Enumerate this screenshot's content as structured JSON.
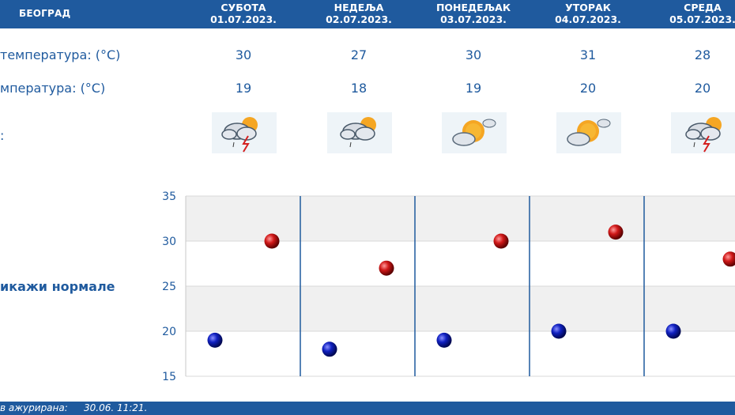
{
  "header": {
    "city": "БЕОГРАД",
    "days": [
      {
        "name": "СУБОТА",
        "date": "01.07.2023."
      },
      {
        "name": "НЕДЕЉА",
        "date": "02.07.2023."
      },
      {
        "name": "ПОНЕДЕЉАК",
        "date": "03.07.2023."
      },
      {
        "name": "УТОРАК",
        "date": "04.07.2023."
      },
      {
        "name": "СРЕДА",
        "date": "05.07.2023."
      }
    ]
  },
  "rows": {
    "max_label": "температура: (°C)",
    "min_label": "мпература: (°C)",
    "icon_label": ":",
    "max_values": [
      "30",
      "27",
      "30",
      "31",
      "28"
    ],
    "min_values": [
      "19",
      "18",
      "19",
      "20",
      "20"
    ]
  },
  "icons": [
    "storm-cloud-sun-icon",
    "rain-cloud-sun-icon",
    "sun-cloud-icon",
    "sun-cloud-icon",
    "storm-cloud-sun-icon"
  ],
  "norm_link": "икажи нормале",
  "footer": {
    "label": "в ажурирана:",
    "time": "30.06. 11:21."
  },
  "colors": {
    "header_bg": "#1f5a9e",
    "max_dot": "#cc1010",
    "min_dot": "#0a14a8"
  },
  "chart_data": {
    "type": "scatter",
    "categories": [
      "01.07.2023.",
      "02.07.2023.",
      "03.07.2023.",
      "04.07.2023.",
      "05.07.2023."
    ],
    "series": [
      {
        "values": [
          30,
          27,
          30,
          31,
          28
        ]
      },
      {
        "values": [
          19,
          18,
          19,
          20,
          20
        ]
      }
    ],
    "ylim": [
      15,
      35
    ],
    "yticks": [
      "15",
      "20",
      "25",
      "30",
      "35"
    ],
    "grid": true
  }
}
